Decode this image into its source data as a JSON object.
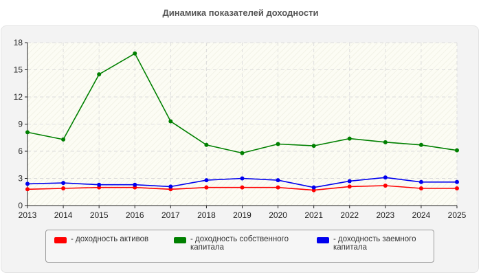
{
  "chart_data": {
    "type": "line",
    "title": "Динамика показателей доходности",
    "x": [
      "2013",
      "2014",
      "2015",
      "2016",
      "2017",
      "2018",
      "2019",
      "2020",
      "2021",
      "2022",
      "2023",
      "2024",
      "2025"
    ],
    "ylim": [
      0,
      18
    ],
    "yticks": [
      "0",
      "3",
      "6",
      "9",
      "12",
      "15",
      "18"
    ],
    "grid": true,
    "legend_position": "bottom",
    "series": [
      {
        "name": "- доходность активов",
        "color": "#ff0000",
        "values": [
          1.8,
          1.9,
          2.0,
          2.0,
          1.8,
          2.0,
          2.0,
          2.0,
          1.7,
          2.1,
          2.2,
          1.9,
          1.9
        ]
      },
      {
        "name": "- доходность собственного\nкапитала",
        "color": "#008000",
        "values": [
          8.1,
          7.3,
          14.5,
          16.8,
          9.3,
          6.7,
          5.8,
          6.8,
          6.6,
          7.4,
          7.0,
          6.7,
          6.1
        ]
      },
      {
        "name": "- доходность заемного\nкапитала",
        "color": "#0000ee",
        "values": [
          2.4,
          2.5,
          2.3,
          2.3,
          2.1,
          2.8,
          3.0,
          2.8,
          2.0,
          2.7,
          3.1,
          2.6,
          2.6
        ]
      }
    ]
  }
}
